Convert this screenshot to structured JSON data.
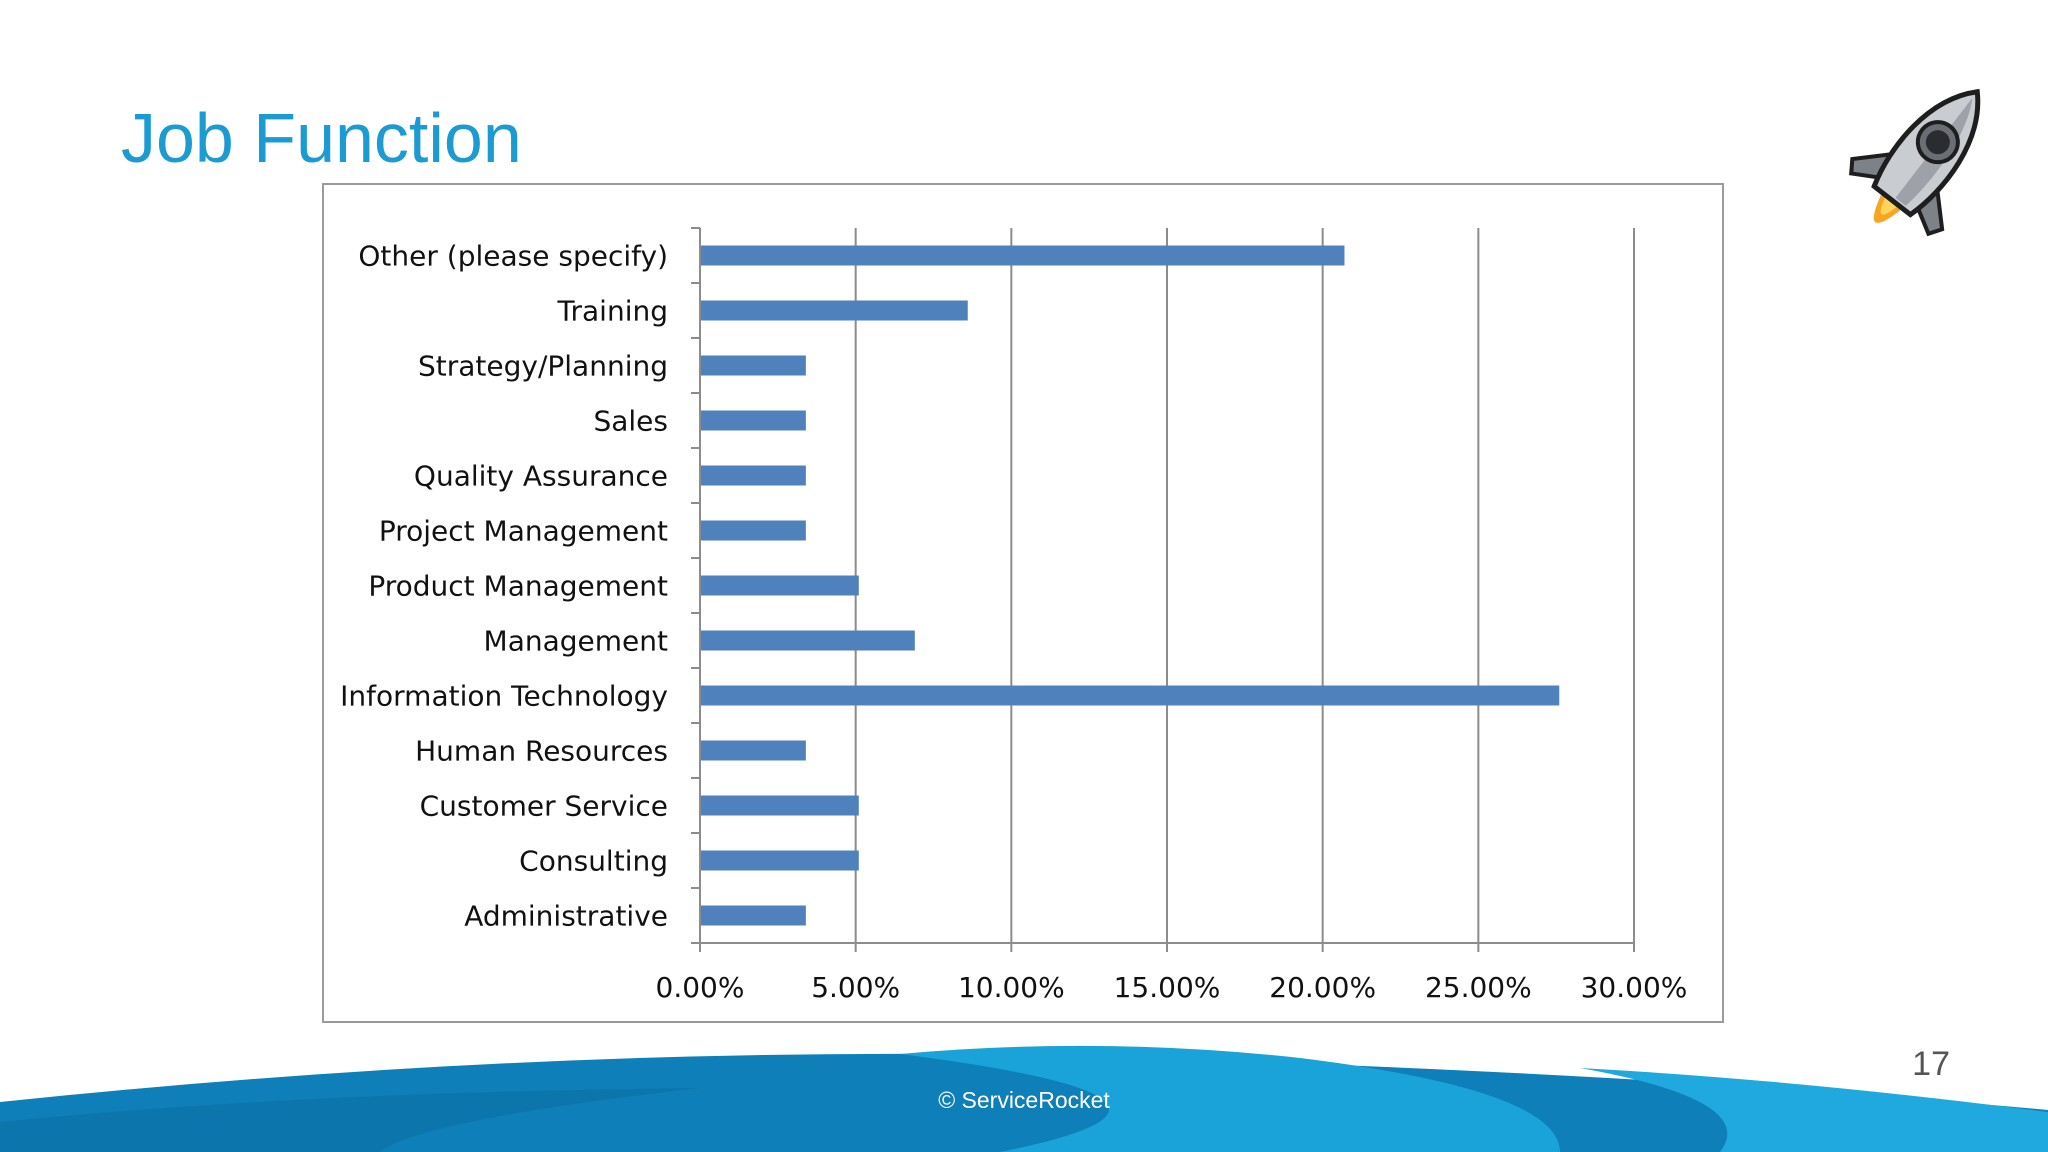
{
  "slide": {
    "title": "Job Function",
    "page_number": "17",
    "copyright": "© ServiceRocket"
  },
  "colors": {
    "title": "#1b9bd2",
    "bar": "#4f81bd",
    "grid": "#8c8c8c",
    "footer_dark": "#0e7fb8",
    "footer_light": "#1aa3d9"
  },
  "icons": {
    "rocket": "rocket-icon"
  },
  "chart_data": {
    "type": "bar",
    "orientation": "horizontal",
    "title": "",
    "xlabel": "",
    "ylabel": "",
    "categories": [
      "Other (please specify)",
      "Training",
      "Strategy/Planning",
      "Sales",
      "Quality Assurance",
      "Project Management",
      "Product Management",
      "Management",
      "Information Technology",
      "Human Resources",
      "Customer Service",
      "Consulting",
      "Administrative"
    ],
    "values": [
      20.7,
      8.6,
      3.4,
      3.4,
      3.4,
      3.4,
      5.1,
      6.9,
      27.6,
      3.4,
      5.1,
      5.1,
      3.4
    ],
    "xlim": [
      0,
      30
    ],
    "xticks": [
      0,
      5,
      10,
      15,
      20,
      25,
      30
    ],
    "xtick_labels": [
      "0.00%",
      "5.00%",
      "10.00%",
      "15.00%",
      "20.00%",
      "25.00%",
      "30.00%"
    ],
    "grid": true,
    "legend": "none"
  }
}
